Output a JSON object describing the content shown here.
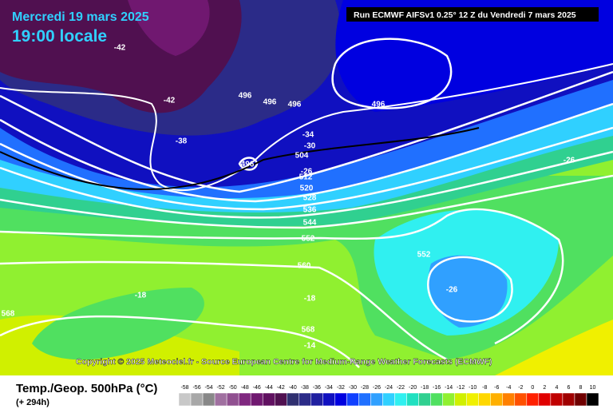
{
  "header": {
    "date": "Mercredi 19 mars 2025",
    "time": "19:00 locale",
    "run": "Run ECMWF AIFSv1 0.25° 12 Z du Vendredi 7 mars 2025"
  },
  "copyright": "Copyright © 2025 Meteociel.fr - Source European Centre for Medium-Range Weather Forecasts (ECMWF)",
  "legend": {
    "title": "Temp./Geop. 500hPa (°C)",
    "lead": "(+ 294h)",
    "ticks": [
      -58,
      -56,
      -54,
      -52,
      -50,
      -48,
      -46,
      -44,
      -42,
      -40,
      -38,
      -36,
      -34,
      -32,
      -30,
      -28,
      -26,
      -24,
      -22,
      -20,
      -18,
      -16,
      -14,
      -12,
      -10,
      -8,
      -6,
      -4,
      -2,
      0,
      2,
      4,
      6,
      8,
      10
    ],
    "colors": [
      "#c8c8c8",
      "#a8a8a8",
      "#888888",
      "#a070a0",
      "#905090",
      "#802880",
      "#701870",
      "#601060",
      "#501050",
      "#303070",
      "#2b2b88",
      "#2020a0",
      "#1010c0",
      "#0000e0",
      "#1040ff",
      "#2070ff",
      "#30a0ff",
      "#30d0ff",
      "#30f0f0",
      "#20e0c0",
      "#30d090",
      "#50e060",
      "#90f030",
      "#d0f000",
      "#f0f000",
      "#ffd700",
      "#ffb000",
      "#ff8000",
      "#ff5000",
      "#ff2000",
      "#e00000",
      "#c00000",
      "#a00000",
      "#700000",
      "#000000"
    ]
  },
  "map": {
    "labels": [
      "-42",
      "-42",
      "496",
      "496",
      "496",
      "496",
      "-38",
      "-34",
      "-30",
      "504",
      "496",
      "-26",
      "512",
      "520",
      "528",
      "536",
      "544",
      "552",
      "552",
      "560",
      "-18",
      "-18",
      "-26",
      "568",
      "568",
      "-14",
      "-26"
    ]
  }
}
